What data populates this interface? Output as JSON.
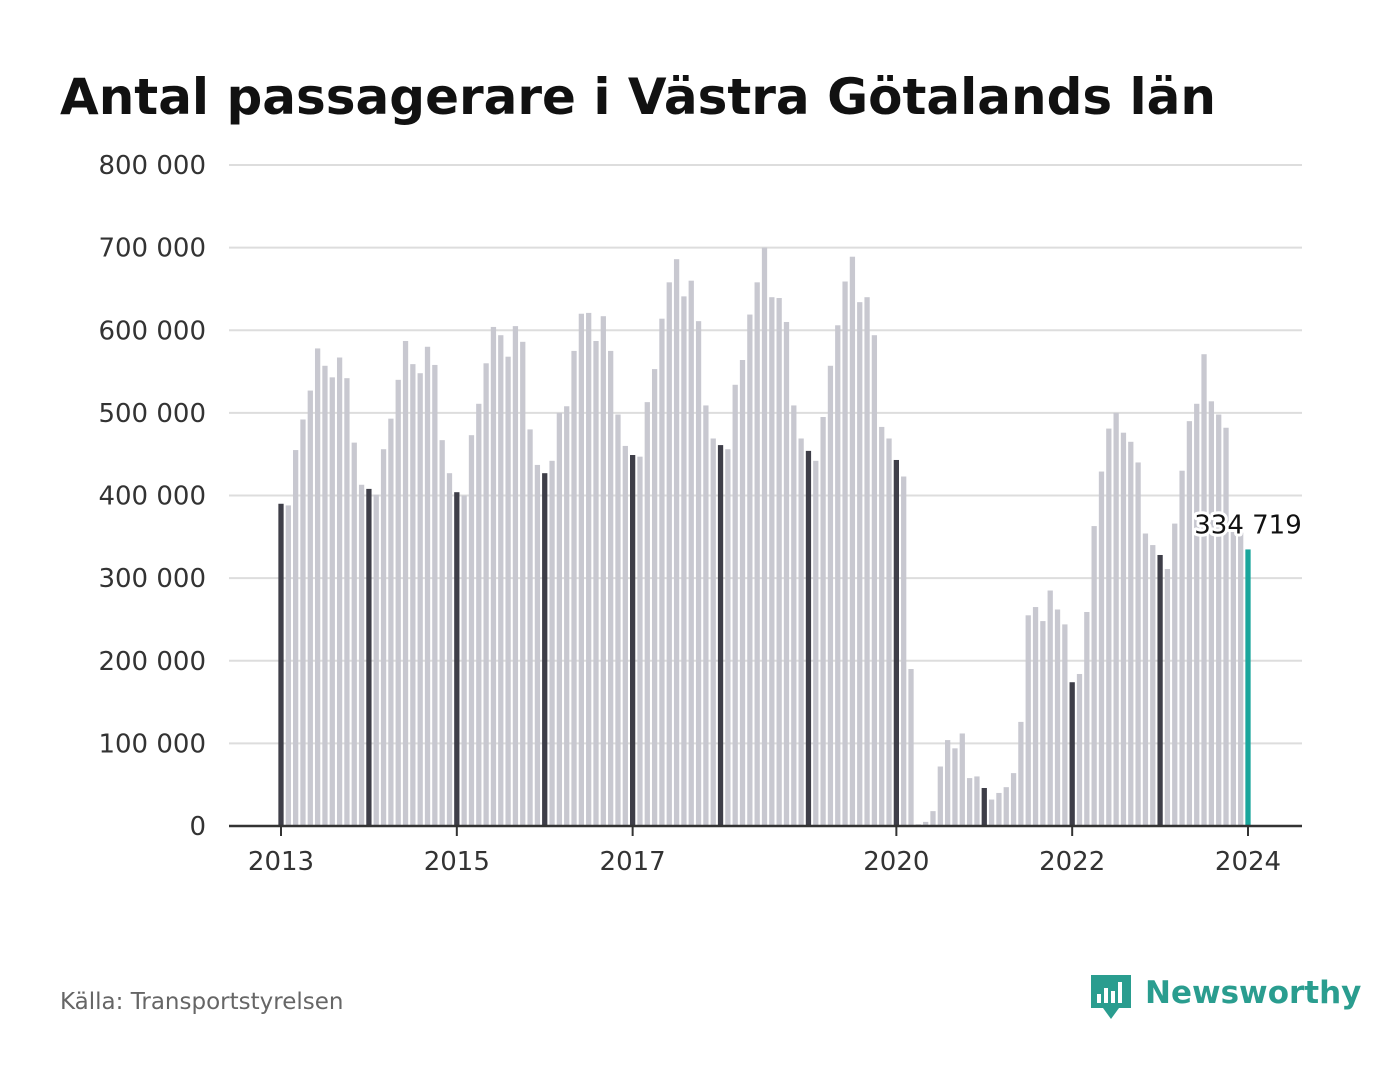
{
  "chart_data": {
    "type": "bar",
    "title": "Antal passagerare i Västra Götalands län",
    "subtitle": "",
    "xlabel": "",
    "ylabel": "",
    "ylim": [
      0,
      800000
    ],
    "yticks": [
      0,
      100000,
      200000,
      300000,
      400000,
      500000,
      600000,
      700000,
      800000
    ],
    "ytick_labels": [
      "0",
      "100 000",
      "200 000",
      "300 000",
      "400 000",
      "500 000",
      "600 000",
      "700 000",
      "800 000"
    ],
    "xticks": [
      "2013",
      "2015",
      "2017",
      "2020",
      "2022",
      "2024"
    ],
    "grid": true,
    "legend": "none",
    "start_year": 2013,
    "start_month": 1,
    "months": [
      "2013-01",
      "2013-02",
      "2013-03",
      "2013-04",
      "2013-05",
      "2013-06",
      "2013-07",
      "2013-08",
      "2013-09",
      "2013-10",
      "2013-11",
      "2013-12",
      "2014-01",
      "2014-02",
      "2014-03",
      "2014-04",
      "2014-05",
      "2014-06",
      "2014-07",
      "2014-08",
      "2014-09",
      "2014-10",
      "2014-11",
      "2014-12",
      "2015-01",
      "2015-02",
      "2015-03",
      "2015-04",
      "2015-05",
      "2015-06",
      "2015-07",
      "2015-08",
      "2015-09",
      "2015-10",
      "2015-11",
      "2015-12",
      "2016-01",
      "2016-02",
      "2016-03",
      "2016-04",
      "2016-05",
      "2016-06",
      "2016-07",
      "2016-08",
      "2016-09",
      "2016-10",
      "2016-11",
      "2016-12",
      "2017-01",
      "2017-02",
      "2017-03",
      "2017-04",
      "2017-05",
      "2017-06",
      "2017-07",
      "2017-08",
      "2017-09",
      "2017-10",
      "2017-11",
      "2017-12",
      "2018-01",
      "2018-02",
      "2018-03",
      "2018-04",
      "2018-05",
      "2018-06",
      "2018-07",
      "2018-08",
      "2018-09",
      "2018-10",
      "2018-11",
      "2018-12",
      "2019-01",
      "2019-02",
      "2019-03",
      "2019-04",
      "2019-05",
      "2019-06",
      "2019-07",
      "2019-08",
      "2019-09",
      "2019-10",
      "2019-11",
      "2019-12",
      "2020-01",
      "2020-02",
      "2020-03",
      "2020-04",
      "2020-05",
      "2020-06",
      "2020-07",
      "2020-08",
      "2020-09",
      "2020-10",
      "2020-11",
      "2020-12",
      "2021-01",
      "2021-02",
      "2021-03",
      "2021-04",
      "2021-05",
      "2021-06",
      "2021-07",
      "2021-08",
      "2021-09",
      "2021-10",
      "2021-11",
      "2021-12",
      "2022-01",
      "2022-02",
      "2022-03",
      "2022-04",
      "2022-05",
      "2022-06",
      "2022-07",
      "2022-08",
      "2022-09",
      "2022-10",
      "2022-11",
      "2022-12",
      "2023-01",
      "2023-02",
      "2023-03",
      "2023-04",
      "2023-05",
      "2023-06",
      "2023-07",
      "2023-08",
      "2023-09",
      "2023-10",
      "2023-11",
      "2023-12",
      "2024-01"
    ],
    "values": [
      390000,
      388000,
      455000,
      492000,
      527000,
      578000,
      557000,
      543000,
      567000,
      542000,
      464000,
      413000,
      408000,
      401000,
      456000,
      493000,
      540000,
      587000,
      559000,
      548000,
      580000,
      558000,
      467000,
      427000,
      404000,
      400000,
      473000,
      511000,
      560000,
      604000,
      594000,
      568000,
      605000,
      586000,
      480000,
      437000,
      427000,
      442000,
      500000,
      508000,
      575000,
      620000,
      621000,
      587000,
      617000,
      575000,
      498000,
      460000,
      449000,
      447000,
      513000,
      553000,
      614000,
      658000,
      686000,
      641000,
      660000,
      611000,
      509000,
      469000,
      461000,
      456000,
      534000,
      564000,
      619000,
      658000,
      700000,
      640000,
      639000,
      610000,
      509000,
      469000,
      454000,
      442000,
      495000,
      557000,
      606000,
      659000,
      689000,
      634000,
      640000,
      594000,
      483000,
      469000,
      443000,
      423000,
      190000,
      2000,
      5000,
      18000,
      72000,
      104000,
      94000,
      112000,
      58000,
      60000,
      46000,
      32000,
      40000,
      47000,
      64000,
      126000,
      255000,
      265000,
      248000,
      285000,
      262000,
      244000,
      174000,
      184000,
      259000,
      363000,
      429000,
      481000,
      500000,
      476000,
      465000,
      440000,
      354000,
      340000,
      328000,
      311000,
      366000,
      430000,
      490000,
      511000,
      571000,
      514000,
      498000,
      482000,
      362000,
      355000,
      334719
    ],
    "highlight": {
      "month": "2024-01",
      "value": 334719,
      "label": "334 719"
    }
  },
  "source": "Källa: Transportstyrelsen",
  "brand": {
    "name": "Newsworthy",
    "icon": "bar-chart-speech-bubble-icon"
  },
  "colors": {
    "bar": "#c8c8d0",
    "january_bar": "#3e3e48",
    "highlight_bar": "#1aa69c",
    "gridline": "#dddddd",
    "axis": "#333333",
    "brand": "#2a9d8f"
  }
}
